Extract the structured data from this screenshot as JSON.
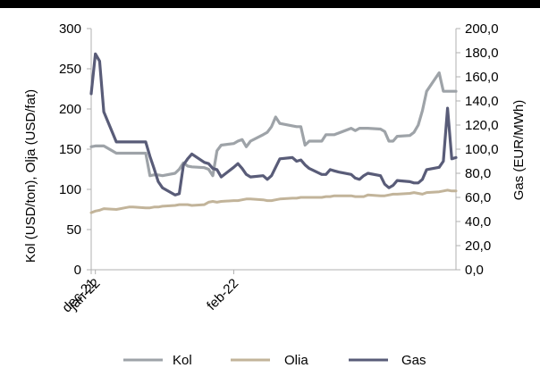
{
  "chart_data": {
    "type": "line",
    "title": "",
    "x_tick_labels": [
      "dec-21",
      "jan-22",
      "feb-22"
    ],
    "y_left": {
      "label": "Kol (USD/ton), Olja (USD/fat)",
      "range": [
        0,
        300
      ],
      "ticks": [
        "0",
        "50",
        "100",
        "150",
        "200",
        "250",
        "300"
      ]
    },
    "y_right": {
      "label": "Gas (EUR/MWh)",
      "range": [
        0,
        200
      ],
      "ticks": [
        "0,0",
        "20,0",
        "40,0",
        "60,0",
        "80,0",
        "100,0",
        "120,0",
        "140,0",
        "160,0",
        "180,0",
        "200,0"
      ]
    },
    "grid": false,
    "legend_position": "bottom",
    "dates": [
      "2021-11-30",
      "2021-12-01",
      "2021-12-02",
      "2021-12-03",
      "2021-12-06",
      "2021-12-07",
      "2021-12-08",
      "2021-12-09",
      "2021-12-10",
      "2021-12-13",
      "2021-12-14",
      "2021-12-15",
      "2021-12-16",
      "2021-12-17",
      "2021-12-20",
      "2021-12-21",
      "2021-12-22",
      "2021-12-23",
      "2021-12-24",
      "2021-12-27",
      "2021-12-28",
      "2021-12-29",
      "2021-12-30",
      "2021-12-31",
      "2022-01-03",
      "2022-01-04",
      "2022-01-05",
      "2022-01-06",
      "2022-01-07",
      "2022-01-10",
      "2022-01-11",
      "2022-01-12",
      "2022-01-13",
      "2022-01-14",
      "2022-01-17",
      "2022-01-18",
      "2022-01-19",
      "2022-01-20",
      "2022-01-21",
      "2022-01-24",
      "2022-01-25",
      "2022-01-26",
      "2022-01-27",
      "2022-01-28",
      "2022-01-31",
      "2022-02-01",
      "2022-02-02",
      "2022-02-03",
      "2022-02-04",
      "2022-02-07",
      "2022-02-08",
      "2022-02-09",
      "2022-02-10",
      "2022-02-11",
      "2022-02-14",
      "2022-02-15",
      "2022-02-16",
      "2022-02-17",
      "2022-02-18",
      "2022-02-21",
      "2022-02-22",
      "2022-02-23",
      "2022-02-24",
      "2022-02-25"
    ],
    "series": [
      {
        "name": "Kol",
        "axis": "left",
        "color": "#9ea3a8",
        "values": [
          153,
          154,
          154,
          154,
          145,
          145,
          145,
          145,
          145,
          145,
          117,
          118,
          118,
          117,
          120,
          125,
          133,
          129,
          128,
          127,
          125,
          117,
          148,
          155,
          157,
          160,
          162,
          153,
          160,
          168,
          171,
          178,
          190,
          182,
          179,
          178,
          178,
          155,
          160,
          160,
          168,
          168,
          168,
          170,
          176,
          173,
          176,
          176,
          176,
          175,
          172,
          160,
          160,
          166,
          167,
          171,
          180,
          198,
          222,
          245,
          222,
          222,
          222,
          222
        ]
      },
      {
        "name": "Olia",
        "axis": "left",
        "color": "#c2b49a",
        "values": [
          71,
          73,
          74,
          76,
          75,
          76,
          77,
          78,
          78,
          77,
          77,
          78,
          78,
          79,
          80,
          81,
          81,
          81,
          80,
          81,
          84,
          85,
          84,
          85,
          86,
          86,
          87,
          88,
          88,
          87,
          86,
          86,
          87,
          88,
          89,
          89,
          90,
          90,
          90,
          90,
          91,
          91,
          92,
          92,
          92,
          91,
          91,
          91,
          93,
          92,
          92,
          93,
          94,
          94,
          95,
          96,
          95,
          94,
          96,
          97,
          98,
          99,
          98,
          98
        ]
      },
      {
        "name": "Gas",
        "axis": "right",
        "color": "#595c78",
        "values": [
          146,
          179,
          173,
          131,
          106,
          106,
          106,
          106,
          106,
          106,
          94,
          84,
          73,
          68,
          62,
          63,
          87,
          92,
          96,
          89,
          88,
          84,
          83,
          77,
          85,
          88,
          84,
          79,
          77,
          78,
          75,
          78,
          85,
          92,
          93,
          90,
          91,
          87,
          84,
          79,
          79,
          83,
          82,
          81,
          79,
          76,
          75,
          78,
          80,
          78,
          71,
          68,
          70,
          74,
          73,
          72,
          72,
          75,
          83,
          85,
          90,
          134,
          92,
          93
        ]
      }
    ]
  },
  "legend": {
    "items": [
      {
        "label": "Kol",
        "color": "#9ea3a8"
      },
      {
        "label": "Olia",
        "color": "#c2b49a"
      },
      {
        "label": "Gas",
        "color": "#595c78"
      }
    ]
  }
}
